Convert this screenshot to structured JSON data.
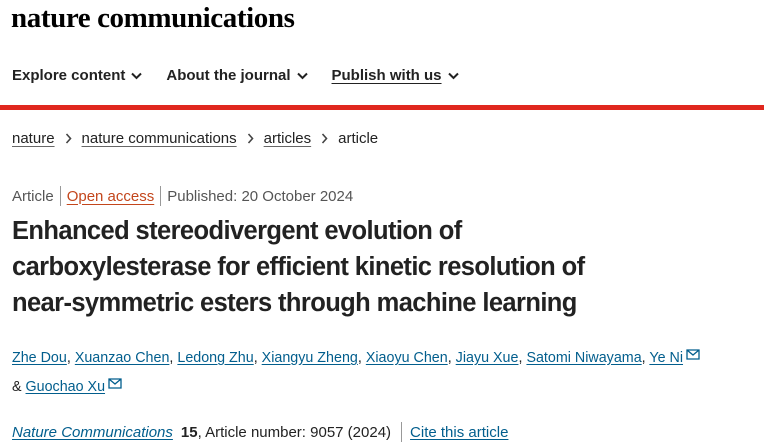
{
  "header": {
    "logo": "nature communications"
  },
  "nav": [
    "Explore content",
    "About the journal",
    "Publish with us"
  ],
  "breadcrumb": [
    "nature",
    "nature communications",
    "articles",
    "article"
  ],
  "article": {
    "type": "Article",
    "access": "Open access",
    "published": "Published: 20 October 2024",
    "title_lines": [
      "Enhanced stereodivergent evolution of",
      "carboxylesterase for efficient kinetic resolution of",
      "near-symmetric esters through machine learning"
    ],
    "authors": [
      {
        "name": "Zhe Dou",
        "email": false
      },
      {
        "name": "Xuanzao Chen",
        "email": false
      },
      {
        "name": "Ledong Zhu",
        "email": false
      },
      {
        "name": "Xiangyu Zheng",
        "email": false
      },
      {
        "name": "Xiaoyu Chen",
        "email": false
      },
      {
        "name": "Jiayu Xue",
        "email": false
      },
      {
        "name": "Satomi Niwayama",
        "email": false
      },
      {
        "name": "Ye Ni",
        "email": true
      },
      {
        "name": "Guochao Xu",
        "email": true
      }
    ],
    "author_separator": ",",
    "author_last_joiner": "&",
    "journal": "Nature Communications",
    "volume": "15",
    "details": ", Article number: 9057 (2024)",
    "cite": "Cite this article"
  }
}
